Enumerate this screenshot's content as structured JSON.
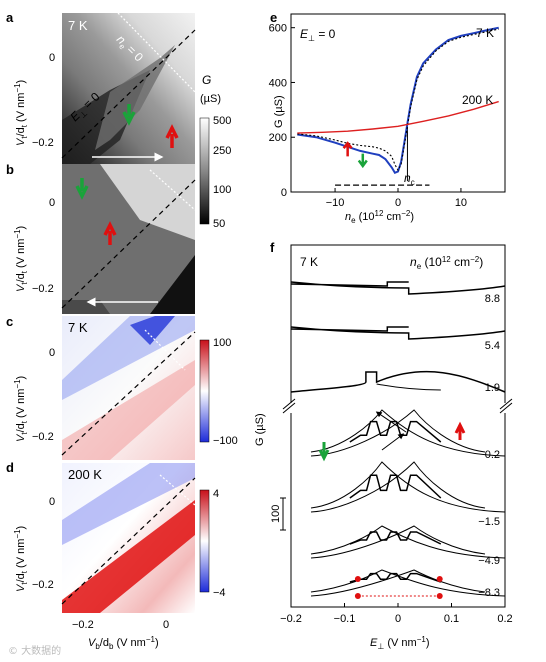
{
  "panel_labels": {
    "a": "a",
    "b": "b",
    "c": "c",
    "d": "d",
    "e": "e",
    "f": "f"
  },
  "left": {
    "ylabel": "Vₜ/dₜ (V nm⁻¹)",
    "ylabel_main": "V",
    "ylabel_sub1": "t",
    "ylabel_mid": "/d",
    "ylabel_sub2": "t",
    "ylabel_unit": " (V nm",
    "ylabel_exp": "−1",
    "ylabel_close": ")",
    "yticks": [
      "0",
      "−0.2"
    ],
    "xlabel_main": "V",
    "xlabel_sub1": "b",
    "xlabel_mid": "/d",
    "xlabel_sub2": "b",
    "xlabel_unit": " (V nm",
    "xlabel_exp": "−1",
    "xlabel_close": ")",
    "xticks": [
      "−0.2",
      "0"
    ],
    "panel_a": {
      "temp": "7 K",
      "ne_label_main": "n",
      "ne_label_sub": "e",
      "ne_label_rest": " = 0",
      "E_label_main": "E",
      "E_label_sub": "⊥",
      "E_label_rest": " = 0"
    },
    "panel_c": {
      "temp": "7 K"
    },
    "panel_d": {
      "temp": "200 K"
    },
    "colorbar_G": {
      "title": "G",
      "unit": "(µS)",
      "ticks": [
        "500",
        "250",
        "100",
        "50"
      ]
    },
    "colorbar_c": {
      "ticks": [
        "100",
        "−100"
      ]
    },
    "colorbar_d": {
      "ticks": [
        "4",
        "−4"
      ]
    }
  },
  "chart_data": [
    {
      "type": "line",
      "panel": "e",
      "annotation_main": "E",
      "annotation_sub": "⊥",
      "annotation_rest": " = 0",
      "xlabel_main": "n",
      "xlabel_sub": "e",
      "xlabel_rest": " (10",
      "xlabel_exp": "12",
      "xlabel_rest2": " cm",
      "xlabel_exp2": "−2",
      "xlabel_close": ")",
      "ylabel": "G (µS)",
      "xlim": [
        -17,
        17
      ],
      "ylim": [
        0,
        650
      ],
      "xticks": [
        "−10",
        "0",
        "10"
      ],
      "yticks": [
        "0",
        "200",
        "400",
        "600"
      ],
      "nc_label_main": "n",
      "nc_label_sub": "c",
      "nc_value": 1.5,
      "series": [
        {
          "name": "7 K",
          "color": "#1f3fbf",
          "x": [
            -16,
            -13,
            -10,
            -8,
            -6,
            -4,
            -3,
            -2,
            -1,
            -0.5,
            0,
            0.5,
            1,
            1.5,
            2,
            3,
            4,
            6,
            8,
            10,
            12,
            14,
            16
          ],
          "y": [
            210,
            200,
            180,
            165,
            150,
            140,
            135,
            120,
            90,
            70,
            75,
            110,
            180,
            250,
            320,
            420,
            470,
            520,
            555,
            570,
            580,
            590,
            600
          ]
        },
        {
          "name": "7 K dotted",
          "color": "#1f3fbf",
          "x": [
            -16,
            -13,
            -10,
            -8,
            -6,
            -4,
            -3,
            -2,
            -1,
            -0.5,
            0,
            0.5,
            1,
            1.5,
            2,
            3,
            4,
            6,
            8,
            10,
            12,
            14,
            16
          ],
          "y": [
            212,
            205,
            190,
            178,
            170,
            165,
            160,
            150,
            130,
            100,
            80,
            100,
            170,
            240,
            310,
            410,
            460,
            515,
            550,
            565,
            575,
            585,
            595
          ]
        },
        {
          "name": "200 K",
          "color": "#dd2020",
          "x": [
            -16,
            -12,
            -8,
            -4,
            0,
            4,
            8,
            12,
            16
          ],
          "y": [
            215,
            218,
            222,
            230,
            240,
            258,
            278,
            302,
            330
          ]
        }
      ],
      "baseline_dashed_y": 25,
      "arrow_red_x": -8,
      "arrow_green_x": -7.5
    },
    {
      "type": "line",
      "panel": "f",
      "temp": "7 K",
      "legend_main": "n",
      "legend_sub": "e",
      "legend_rest": " (10",
      "legend_exp": "12",
      "legend_rest2": " cm",
      "legend_exp2": "−2",
      "legend_close": ")",
      "ylabel": "G (µS)",
      "scalebar_label": "100",
      "xlim": [
        -0.2,
        0.2
      ],
      "xticks": [
        "−0.2",
        "−0.1",
        "0",
        "0.1",
        "0.2"
      ],
      "xlabel_main": "E",
      "xlabel_sub": "⊥",
      "xlabel_rest": " (V nm",
      "xlabel_exp": "−1",
      "xlabel_close": ")",
      "curve_labels": [
        "8.8",
        "5.4",
        "1.9",
        "0.2",
        "−1.5",
        "−4.9",
        "−8.3"
      ],
      "marker_x": [
        -0.075,
        0.078
      ]
    }
  ]
}
